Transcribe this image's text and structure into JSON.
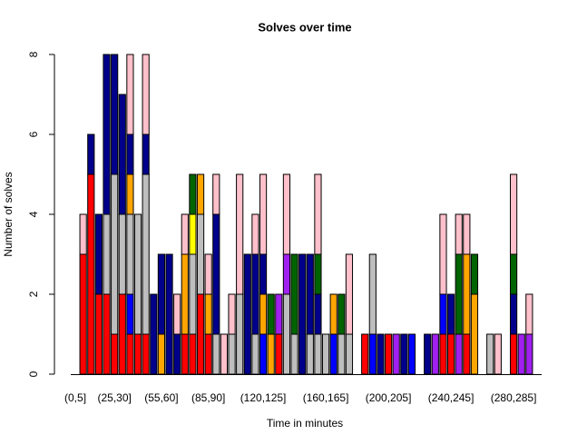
{
  "chart_data": {
    "type": "stacked-bar",
    "title": "Solves over time",
    "x_label": "Time in minutes",
    "y_label": "Number of solves",
    "categories": [
      "(0,5]",
      null,
      null,
      null,
      null,
      "(25,30]",
      null,
      null,
      null,
      null,
      null,
      "(55,60]",
      null,
      null,
      null,
      null,
      null,
      "(85,90]",
      null,
      null,
      null,
      null,
      null,
      null,
      "(120,125]",
      null,
      null,
      null,
      null,
      null,
      null,
      null,
      "(160,165]",
      null,
      null,
      null,
      null,
      null,
      null,
      null,
      "(200,205]",
      null,
      null,
      null,
      null,
      null,
      null,
      null,
      "(240,245]",
      null,
      null,
      null,
      null,
      null,
      null,
      null,
      "(280,285]",
      null,
      null,
      null
    ],
    "series": [
      {
        "color": "#ff0000",
        "values": [
          0,
          3,
          5,
          2,
          2,
          1,
          2,
          1,
          1,
          1,
          0,
          0,
          0,
          0,
          1,
          1,
          2,
          1,
          0,
          0,
          0,
          0,
          0,
          0,
          0,
          0,
          1,
          0,
          0,
          0,
          0,
          0,
          0,
          0,
          0,
          0,
          0,
          1,
          0,
          0,
          1,
          0,
          0,
          0,
          0,
          0,
          0,
          1,
          1,
          0,
          1,
          0,
          0,
          0,
          0,
          0,
          1,
          0,
          0,
          0
        ]
      },
      {
        "color": "#0000ff",
        "values": [
          0,
          0,
          0,
          0,
          0,
          0,
          0,
          1,
          0,
          0,
          0,
          0,
          0,
          0,
          0,
          0,
          0,
          0,
          0,
          0,
          0,
          0,
          0,
          0,
          1,
          0,
          0,
          0,
          0,
          0,
          0,
          0,
          0,
          1,
          0,
          0,
          0,
          0,
          1,
          0,
          0,
          0,
          0,
          1,
          0,
          0,
          0,
          1,
          0,
          0,
          0,
          0,
          0,
          0,
          0,
          0,
          0,
          0,
          0,
          0
        ]
      },
      {
        "color": "#bebebe",
        "values": [
          0,
          0,
          0,
          0,
          2,
          4,
          2,
          2,
          3,
          4,
          0,
          0,
          0,
          0,
          0,
          2,
          2,
          0,
          1,
          0,
          1,
          2,
          0,
          1,
          0,
          0,
          0,
          2,
          1,
          0,
          1,
          1,
          1,
          0,
          1,
          1,
          0,
          0,
          2,
          0,
          0,
          0,
          0,
          0,
          0,
          0,
          0,
          0,
          0,
          0,
          0,
          0,
          0,
          1,
          0,
          0,
          0,
          0,
          0,
          0
        ]
      },
      {
        "color": "#ffa500",
        "values": [
          0,
          0,
          0,
          0,
          0,
          0,
          0,
          1,
          0,
          0,
          0,
          1,
          0,
          0,
          2,
          0,
          1,
          1,
          0,
          0,
          0,
          0,
          0,
          0,
          1,
          1,
          0,
          0,
          0,
          0,
          0,
          0,
          0,
          1,
          0,
          0,
          0,
          0,
          0,
          0,
          0,
          0,
          0,
          0,
          0,
          0,
          0,
          0,
          0,
          0,
          2,
          2,
          0,
          0,
          0,
          0,
          0,
          0,
          0,
          0
        ]
      },
      {
        "color": "#ffff00",
        "values": [
          0,
          0,
          0,
          0,
          0,
          0,
          0,
          0,
          0,
          0,
          0,
          0,
          0,
          0,
          0,
          1,
          0,
          0,
          0,
          0,
          0,
          0,
          0,
          0,
          0,
          0,
          0,
          0,
          0,
          0,
          0,
          0,
          0,
          0,
          0,
          0,
          0,
          0,
          0,
          0,
          0,
          0,
          0,
          0,
          0,
          0,
          0,
          0,
          0,
          0,
          0,
          0,
          0,
          0,
          0,
          0,
          0,
          0,
          0,
          0
        ]
      },
      {
        "color": "#a020f0",
        "values": [
          0,
          0,
          0,
          0,
          0,
          0,
          0,
          0,
          0,
          0,
          0,
          0,
          0,
          0,
          0,
          0,
          0,
          0,
          0,
          0,
          0,
          0,
          0,
          0,
          0,
          0,
          1,
          1,
          0,
          0,
          0,
          0,
          0,
          0,
          0,
          0,
          0,
          0,
          0,
          0,
          0,
          1,
          0,
          0,
          0,
          0,
          1,
          0,
          0,
          1,
          0,
          0,
          0,
          0,
          0,
          0,
          0,
          1,
          1,
          0
        ]
      },
      {
        "color": "#00008b",
        "values": [
          0,
          0,
          1,
          2,
          4,
          3,
          3,
          1,
          0,
          1,
          2,
          2,
          3,
          1,
          0,
          0,
          0,
          0,
          3,
          0,
          0,
          0,
          3,
          2,
          1,
          0,
          0,
          0,
          0,
          3,
          2,
          1,
          0,
          0,
          0,
          0,
          0,
          0,
          0,
          1,
          0,
          0,
          1,
          0,
          0,
          1,
          0,
          0,
          1,
          0,
          0,
          0,
          0,
          0,
          0,
          0,
          1,
          0,
          0,
          0
        ]
      },
      {
        "color": "#006400",
        "values": [
          0,
          0,
          0,
          0,
          0,
          0,
          0,
          0,
          0,
          0,
          0,
          0,
          0,
          0,
          0,
          1,
          0,
          0,
          0,
          0,
          0,
          0,
          0,
          0,
          0,
          1,
          0,
          0,
          2,
          0,
          0,
          1,
          0,
          0,
          1,
          0,
          0,
          0,
          0,
          0,
          0,
          0,
          0,
          0,
          0,
          0,
          0,
          0,
          0,
          2,
          0,
          1,
          0,
          0,
          0,
          0,
          1,
          0,
          0,
          0
        ]
      },
      {
        "color": "#ffc0cb",
        "values": [
          0,
          1,
          0,
          0,
          0,
          0,
          0,
          2,
          0,
          2,
          0,
          0,
          0,
          1,
          1,
          0,
          0,
          1,
          1,
          1,
          1,
          3,
          0,
          1,
          2,
          0,
          0,
          2,
          0,
          0,
          0,
          2,
          0,
          0,
          0,
          2,
          0,
          0,
          0,
          0,
          0,
          0,
          0,
          0,
          0,
          0,
          0,
          2,
          0,
          1,
          1,
          0,
          0,
          0,
          1,
          0,
          2,
          0,
          1,
          0
        ]
      }
    ],
    "ylim": [
      0,
      8
    ],
    "yticks": [
      0,
      2,
      4,
      6,
      8
    ]
  }
}
